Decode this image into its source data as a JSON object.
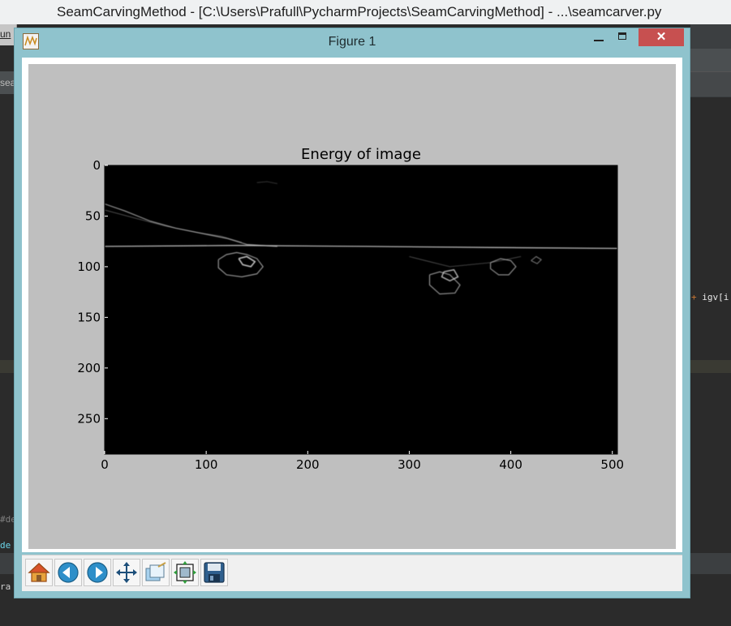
{
  "ide": {
    "window_title": "SeamCarvingMethod - [C:\\Users\\Prafull\\PycharmProjects\\SeamCarvingMethod] - ...\\seamcarver.py",
    "menu_fragment": "un",
    "tab_fragment": "sea",
    "code_fragment_plus": "+",
    "code_fragment_right": " igv[i",
    "code_fragment_left_1": "#de",
    "code_fragment_left_2": "de",
    "code_fragment_left_3": "ra"
  },
  "figure": {
    "window_title": "Figure 1",
    "close_label": "✕",
    "toolbar": [
      {
        "name": "home-icon",
        "tooltip": "Home"
      },
      {
        "name": "back-icon",
        "tooltip": "Back"
      },
      {
        "name": "forward-icon",
        "tooltip": "Forward"
      },
      {
        "name": "pan-icon",
        "tooltip": "Pan"
      },
      {
        "name": "zoom-icon",
        "tooltip": "Zoom"
      },
      {
        "name": "subplots-icon",
        "tooltip": "Subplots"
      },
      {
        "name": "save-icon",
        "tooltip": "Save"
      }
    ]
  },
  "chart_data": {
    "type": "heatmap",
    "title": "Energy of image",
    "xlabel": "",
    "ylabel": "",
    "xlim": [
      0,
      505
    ],
    "ylim": [
      285,
      0
    ],
    "xticks": [
      0,
      100,
      200,
      300,
      400,
      500
    ],
    "yticks": [
      0,
      50,
      100,
      150,
      200,
      250
    ],
    "colormap": "gray",
    "background": "#000000",
    "grid": false
  }
}
